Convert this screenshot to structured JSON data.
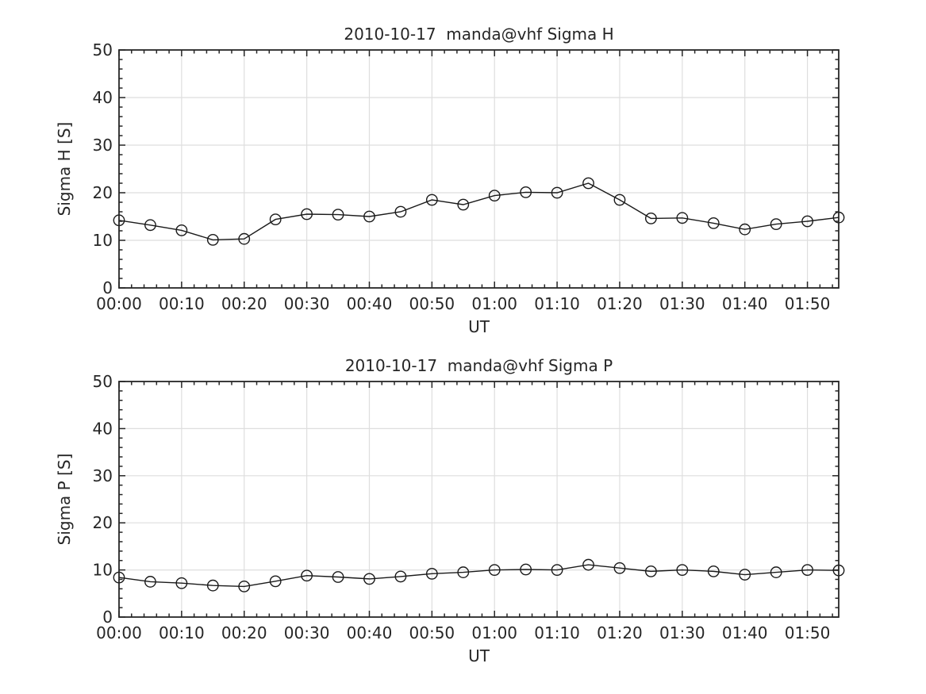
{
  "figure": {
    "background": "#ffffff",
    "text_color": "#262626",
    "axis_color": "#262626",
    "grid_color": "#dedede",
    "line_color": "#1a1a1a"
  },
  "chart_data": [
    {
      "type": "line",
      "title": "2010-10-17  manda@vhf Sigma H",
      "xlabel": "UT",
      "ylabel": "Sigma H [S]",
      "ylim": [
        0,
        50
      ],
      "y_major_ticks": [
        0,
        10,
        20,
        30,
        40,
        50
      ],
      "y_minor_step": 2,
      "xlim_minutes": [
        0,
        115
      ],
      "x_major_step_minutes": 10,
      "x_minor_step_minutes": 2,
      "x_tick_labels": [
        "00:00",
        "00:10",
        "00:20",
        "00:30",
        "00:40",
        "00:50",
        "01:00",
        "01:10",
        "01:20",
        "01:30",
        "01:40",
        "01:50"
      ],
      "grid": true,
      "legend": "none",
      "marker": "open-circle",
      "x": [
        "00:00",
        "00:05",
        "00:10",
        "00:15",
        "00:20",
        "00:25",
        "00:30",
        "00:35",
        "00:40",
        "00:45",
        "00:50",
        "00:55",
        "01:00",
        "01:05",
        "01:10",
        "01:15",
        "01:20",
        "01:25",
        "01:30",
        "01:35",
        "01:40",
        "01:45",
        "01:50",
        "01:55"
      ],
      "values": [
        14.2,
        13.2,
        12.1,
        10.1,
        10.3,
        14.4,
        15.5,
        15.4,
        15.0,
        16.0,
        18.5,
        17.5,
        19.4,
        20.1,
        20.0,
        22.0,
        18.5,
        14.6,
        14.7,
        13.6,
        12.3,
        13.4,
        14.0,
        14.8
      ]
    },
    {
      "type": "line",
      "title": "2010-10-17  manda@vhf Sigma P",
      "xlabel": "UT",
      "ylabel": "Sigma P [S]",
      "ylim": [
        0,
        50
      ],
      "y_major_ticks": [
        0,
        10,
        20,
        30,
        40,
        50
      ],
      "y_minor_step": 2,
      "xlim_minutes": [
        0,
        115
      ],
      "x_major_step_minutes": 10,
      "x_minor_step_minutes": 2,
      "x_tick_labels": [
        "00:00",
        "00:10",
        "00:20",
        "00:30",
        "00:40",
        "00:50",
        "01:00",
        "01:10",
        "01:20",
        "01:30",
        "01:40",
        "01:50"
      ],
      "grid": true,
      "legend": "none",
      "marker": "open-circle",
      "x": [
        "00:00",
        "00:05",
        "00:10",
        "00:15",
        "00:20",
        "00:25",
        "00:30",
        "00:35",
        "00:40",
        "00:45",
        "00:50",
        "00:55",
        "01:00",
        "01:05",
        "01:10",
        "01:15",
        "01:20",
        "01:25",
        "01:30",
        "01:35",
        "01:40",
        "01:45",
        "01:50",
        "01:55"
      ],
      "values": [
        8.4,
        7.5,
        7.2,
        6.7,
        6.5,
        7.6,
        8.8,
        8.5,
        8.1,
        8.6,
        9.2,
        9.5,
        10.0,
        10.1,
        10.0,
        11.1,
        10.4,
        9.7,
        10.0,
        9.7,
        9.0,
        9.5,
        10.0,
        9.9
      ]
    }
  ]
}
